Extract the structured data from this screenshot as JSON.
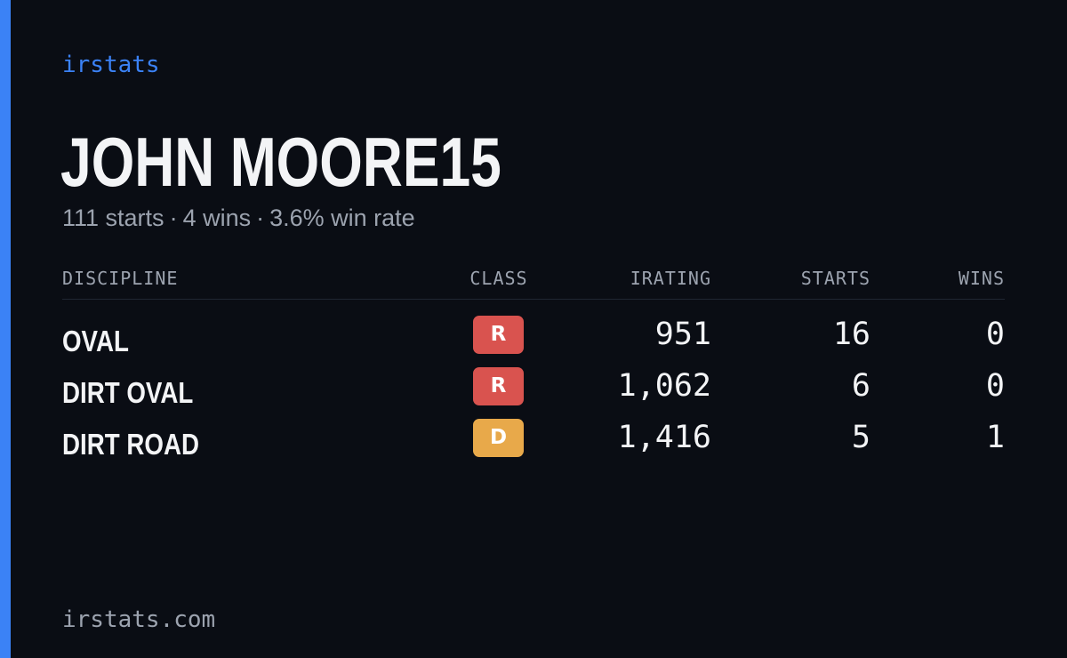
{
  "brand": "irstats",
  "player": {
    "name": "JOHN MOORE15"
  },
  "summary": {
    "starts": "111 starts",
    "wins": "4 wins",
    "win_rate": "3.6% win rate",
    "separator": "·"
  },
  "table": {
    "headers": {
      "discipline": "DISCIPLINE",
      "class": "CLASS",
      "irating": "IRATING",
      "starts": "STARTS",
      "wins": "WINS"
    },
    "rows": [
      {
        "discipline": "OVAL",
        "class": "R",
        "class_color": "#d9534f",
        "irating": "951",
        "starts": "16",
        "wins": "0"
      },
      {
        "discipline": "DIRT OVAL",
        "class": "R",
        "class_color": "#d9534f",
        "irating": "1,062",
        "starts": "6",
        "wins": "0"
      },
      {
        "discipline": "DIRT ROAD",
        "class": "D",
        "class_color": "#e8a94a",
        "irating": "1,416",
        "starts": "5",
        "wins": "1"
      }
    ]
  },
  "footer": {
    "url": "irstats.com"
  },
  "colors": {
    "background": "#0a0d14",
    "accent": "#3b82f6",
    "text_primary": "#f3f4f6",
    "text_muted": "#9ca3af",
    "class_r": "#d9534f",
    "class_d": "#e8a94a"
  }
}
